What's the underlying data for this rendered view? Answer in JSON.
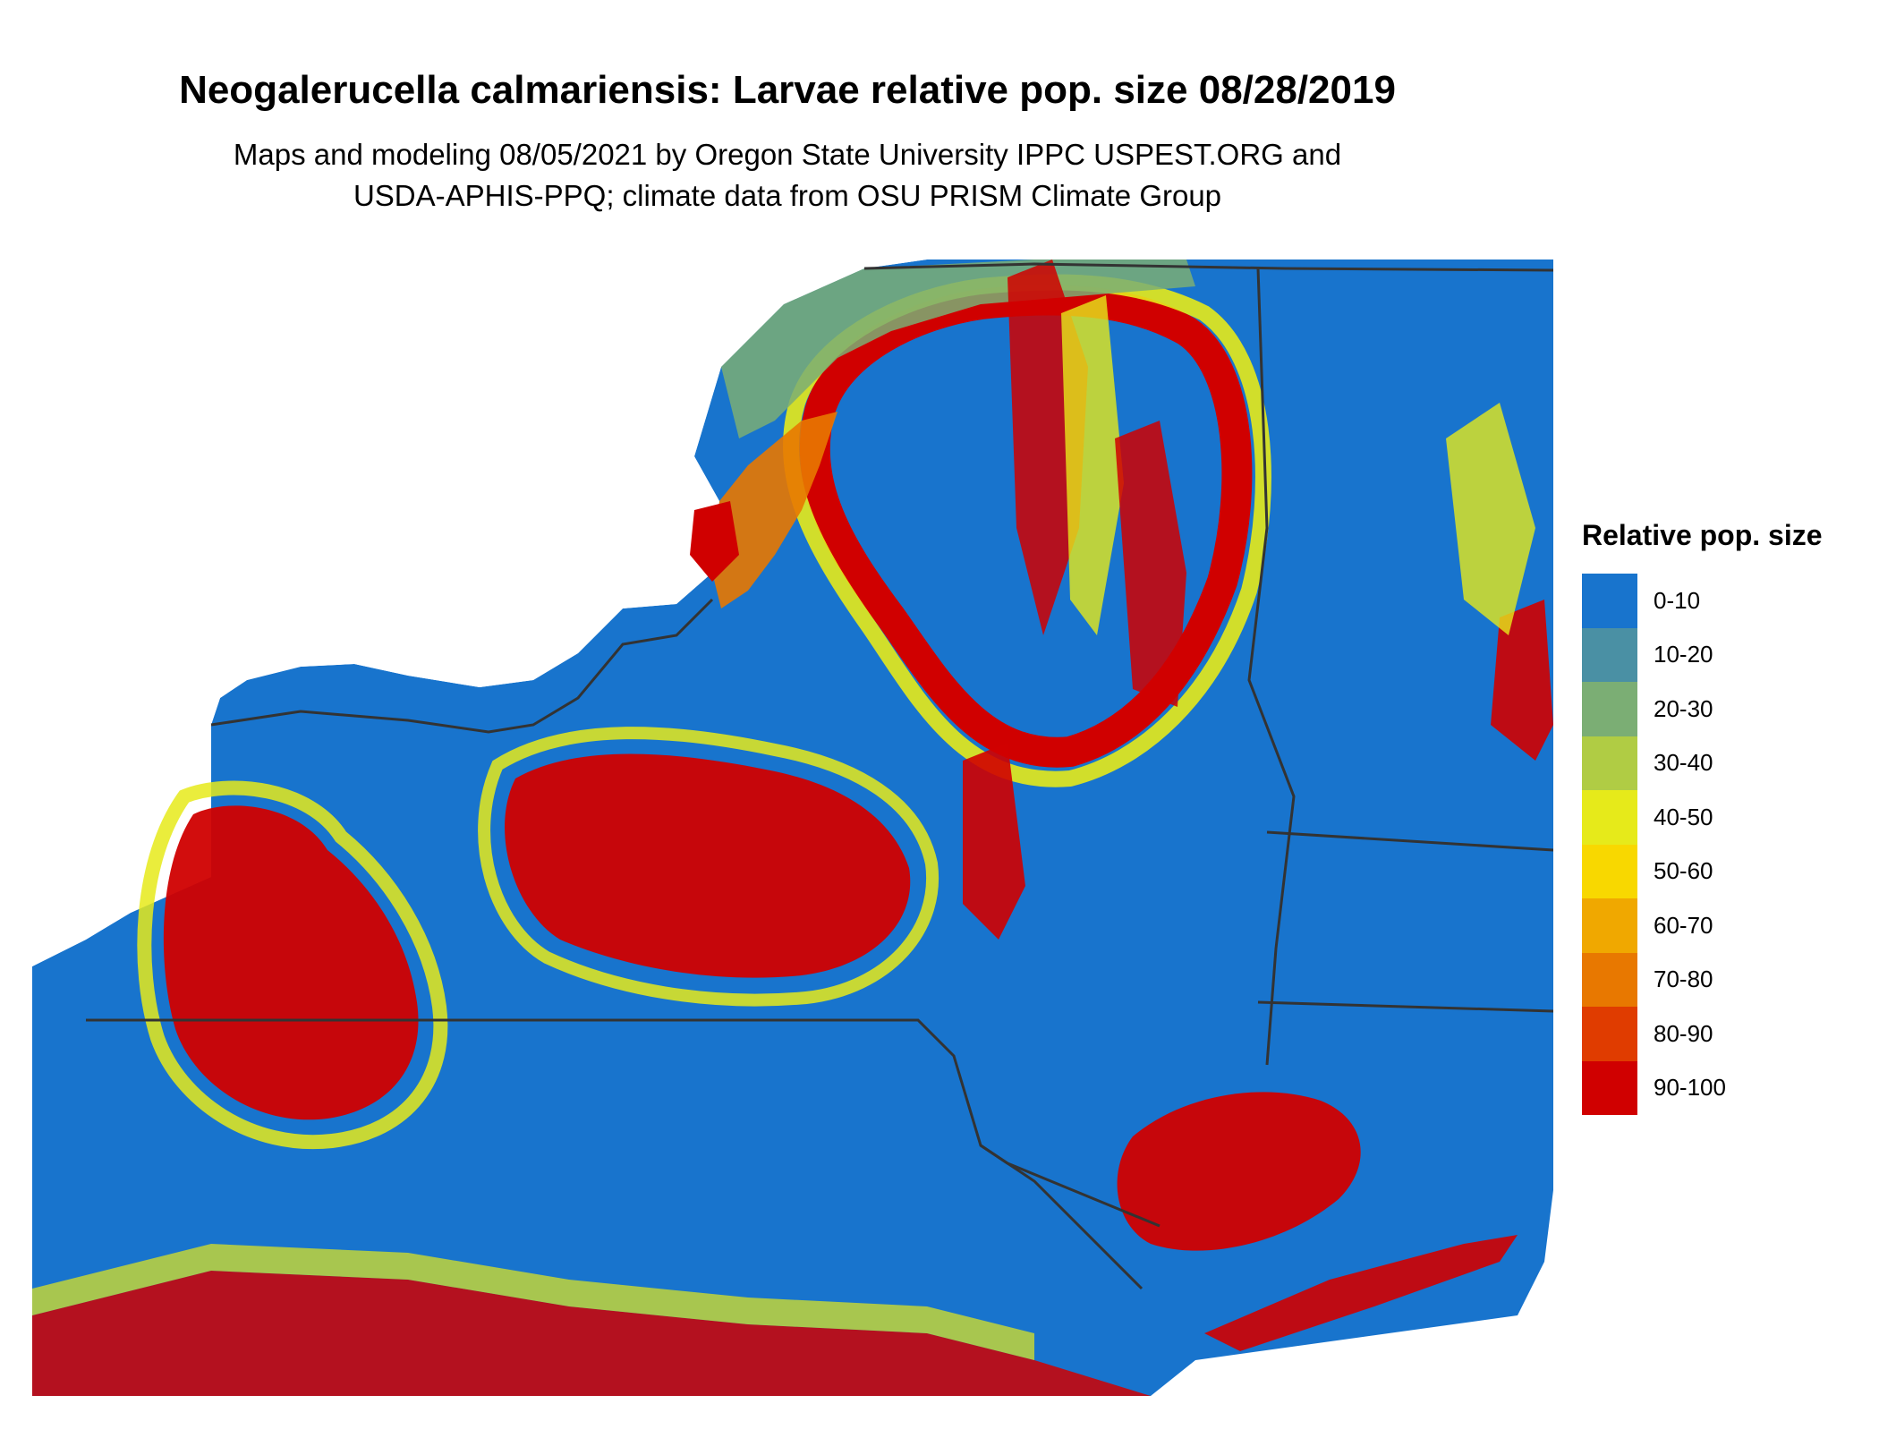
{
  "title": "Neogalerucella calmariensis: Larvae relative pop. size 08/28/2019",
  "subtitle_line1": "Maps and modeling 08/05/2021 by Oregon State University IPPC USPEST.ORG and",
  "subtitle_line2": "USDA-APHIS-PPQ; climate data from OSU PRISM Climate Group",
  "legend": {
    "title": "Relative pop. size",
    "items": [
      {
        "label": "0-10",
        "color": "#1874CD"
      },
      {
        "label": "10-20",
        "color": "#4A90A4"
      },
      {
        "label": "20-30",
        "color": "#7BAE74"
      },
      {
        "label": "30-40",
        "color": "#B0CC44"
      },
      {
        "label": "40-50",
        "color": "#E6EA1A"
      },
      {
        "label": "50-60",
        "color": "#F8D800"
      },
      {
        "label": "60-70",
        "color": "#F0A800"
      },
      {
        "label": "70-80",
        "color": "#E87800"
      },
      {
        "label": "80-90",
        "color": "#E03C00"
      },
      {
        "label": "90-100",
        "color": "#D00000"
      }
    ]
  },
  "map_colors": {
    "water": "#ffffff",
    "low": "#1874CD",
    "mid_green": "#7BAE74",
    "yellow": "#E6EA1A",
    "orange": "#E87800",
    "red": "#D00000",
    "border": "#333333"
  }
}
